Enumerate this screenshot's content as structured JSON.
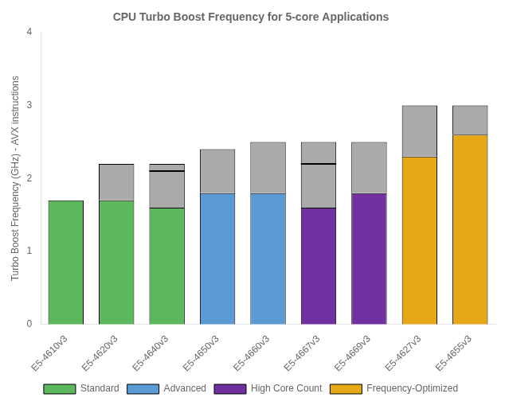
{
  "chart_data": {
    "type": "bar",
    "title": "CPU Turbo Boost Frequency for 5-core Applications",
    "ylabel": "Turbo Boost Frequency (GHz) - AVX instructions",
    "categories": [
      "E5-4610v3",
      "E5-4620v3",
      "E5-4640v3",
      "E5-4650v3",
      "E5-4660v3",
      "E5-4667v3",
      "E5-4669v3",
      "E5-4627v3",
      "E5-4655v3"
    ],
    "series": [
      {
        "name": "Standard",
        "color": "#5cb85c",
        "values": [
          1.7,
          1.7,
          1.6,
          null,
          null,
          null,
          null,
          null,
          null
        ]
      },
      {
        "name": "Advanced",
        "color": "#5b9bd5",
        "values": [
          null,
          null,
          null,
          1.8,
          1.8,
          null,
          null,
          null,
          null
        ]
      },
      {
        "name": "High Core Count",
        "color": "#7030a0",
        "values": [
          null,
          null,
          null,
          null,
          null,
          1.6,
          1.8,
          null,
          null
        ]
      },
      {
        "name": "Frequency-Optimized",
        "color": "#e6a817",
        "values": [
          null,
          null,
          null,
          null,
          null,
          null,
          null,
          2.3,
          2.6
        ]
      },
      {
        "color": "#aaaaaa",
        "values": [
          null,
          0.5,
          0.6,
          0.6,
          0.7,
          0.9,
          0.7,
          0.7,
          0.4
        ]
      },
      {
        "type": "scatter",
        "marker": "line",
        "color": "#000000",
        "values": [
          null,
          null,
          2.1,
          null,
          null,
          2.2,
          null,
          null,
          null
        ]
      }
    ],
    "stacked": true,
    "ylim": [
      0,
      4
    ],
    "yticks": [
      0,
      1,
      2,
      3,
      4
    ],
    "grid": false,
    "legend": "bottom"
  }
}
